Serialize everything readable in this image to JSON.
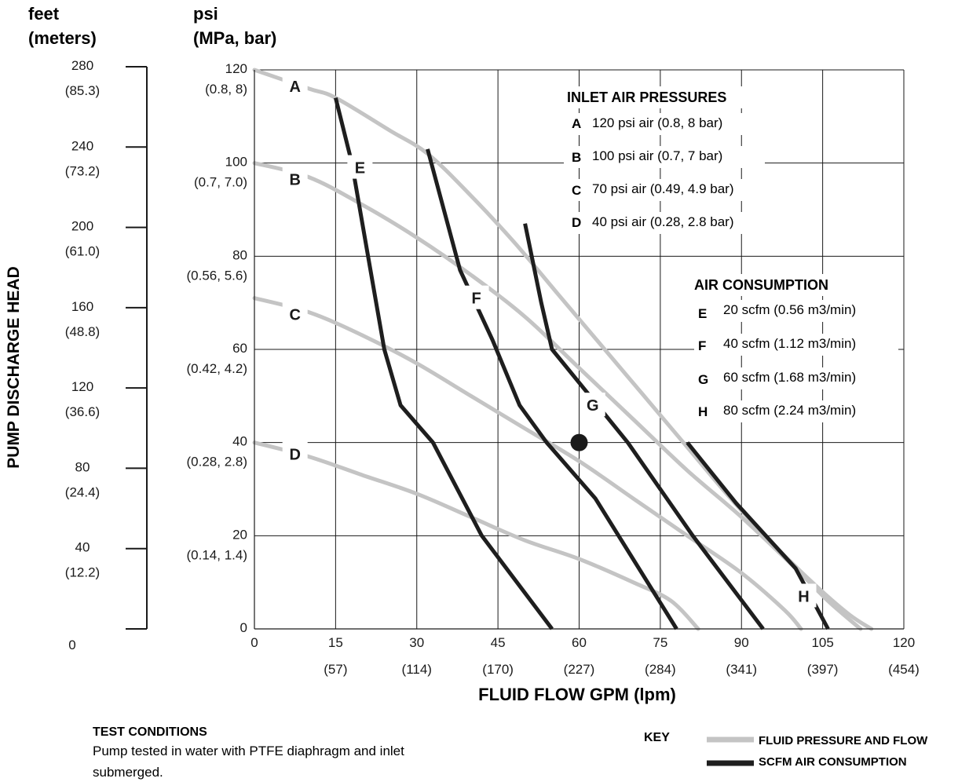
{
  "chart_data": {
    "type": "line",
    "title": "",
    "xlabel": "FLUID FLOW GPM (lpm)",
    "ylabel": "PUMP DISCHARGE HEAD",
    "xlim": [
      0,
      120
    ],
    "ylim": [
      0,
      120
    ],
    "grid": true,
    "x_ticks": [
      {
        "v": 0,
        "top": "0",
        "bottom": ""
      },
      {
        "v": 15,
        "top": "15",
        "bottom": "(57)"
      },
      {
        "v": 30,
        "top": "30",
        "bottom": "(114)"
      },
      {
        "v": 45,
        "top": "45",
        "bottom": "(170)"
      },
      {
        "v": 60,
        "top": "60",
        "bottom": "(227)"
      },
      {
        "v": 75,
        "top": "75",
        "bottom": "(284)"
      },
      {
        "v": 90,
        "top": "90",
        "bottom": "(341)"
      },
      {
        "v": 105,
        "top": "105",
        "bottom": "(397)"
      },
      {
        "v": 120,
        "top": "120",
        "bottom": "(454)"
      }
    ],
    "psi_header": [
      "psi",
      "(MPa, bar)"
    ],
    "psi_ticks": [
      {
        "v": 0,
        "top": "0",
        "bottom": ""
      },
      {
        "v": 20,
        "top": "20",
        "bottom": "(0.14, 1.4)"
      },
      {
        "v": 40,
        "top": "40",
        "bottom": "(0.28, 2.8)"
      },
      {
        "v": 60,
        "top": "60",
        "bottom": "(0.42, 4.2)"
      },
      {
        "v": 80,
        "top": "80",
        "bottom": "(0.56, 5.6)"
      },
      {
        "v": 100,
        "top": "100",
        "bottom": "(0.7, 7.0)"
      },
      {
        "v": 120,
        "top": "120",
        "bottom": "(0.8, 8)"
      }
    ],
    "feet_header": [
      "feet",
      "(meters)"
    ],
    "feet_ticks": [
      {
        "v": 0,
        "top": "0",
        "bottom": ""
      },
      {
        "v": 40,
        "top": "40",
        "bottom": "(12.2)"
      },
      {
        "v": 80,
        "top": "80",
        "bottom": "(24.4)"
      },
      {
        "v": 120,
        "top": "120",
        "bottom": "(36.6)"
      },
      {
        "v": 160,
        "top": "160",
        "bottom": "(48.8)"
      },
      {
        "v": 200,
        "top": "200",
        "bottom": "(61.0)"
      },
      {
        "v": 240,
        "top": "240",
        "bottom": "(73.2)"
      },
      {
        "v": 280,
        "top": "280",
        "bottom": "(85.3)"
      }
    ],
    "pressure_curves": [
      {
        "name": "A",
        "points": [
          [
            0,
            120
          ],
          [
            10,
            116
          ],
          [
            15,
            114
          ],
          [
            25,
            107
          ],
          [
            32,
            102
          ],
          [
            40,
            93
          ],
          [
            48,
            83
          ],
          [
            56,
            72
          ],
          [
            64,
            61
          ],
          [
            72,
            50
          ],
          [
            80,
            39
          ],
          [
            88,
            28
          ],
          [
            96,
            18
          ],
          [
            104,
            9
          ],
          [
            110,
            3
          ],
          [
            114,
            0
          ]
        ]
      },
      {
        "name": "B",
        "points": [
          [
            0,
            100
          ],
          [
            10,
            97
          ],
          [
            20,
            91
          ],
          [
            30,
            84
          ],
          [
            40,
            76
          ],
          [
            50,
            67
          ],
          [
            60,
            56
          ],
          [
            70,
            45
          ],
          [
            80,
            34
          ],
          [
            90,
            24
          ],
          [
            100,
            13
          ],
          [
            106,
            6
          ],
          [
            112,
            0
          ]
        ]
      },
      {
        "name": "C",
        "points": [
          [
            0,
            71
          ],
          [
            10,
            68
          ],
          [
            20,
            63
          ],
          [
            30,
            57
          ],
          [
            40,
            50
          ],
          [
            50,
            43
          ],
          [
            60,
            36
          ],
          [
            70,
            28
          ],
          [
            80,
            20
          ],
          [
            90,
            12
          ],
          [
            98,
            4
          ],
          [
            101,
            0
          ]
        ]
      },
      {
        "name": "D",
        "points": [
          [
            0,
            40
          ],
          [
            10,
            37
          ],
          [
            20,
            33
          ],
          [
            30,
            29
          ],
          [
            40,
            24
          ],
          [
            50,
            19
          ],
          [
            60,
            15
          ],
          [
            70,
            10
          ],
          [
            77,
            6
          ],
          [
            82,
            0
          ]
        ]
      }
    ],
    "air_curves": [
      {
        "name": "E",
        "points": [
          [
            15,
            114
          ],
          [
            18,
            100
          ],
          [
            21,
            80
          ],
          [
            24,
            60
          ],
          [
            27,
            48
          ],
          [
            33,
            40
          ],
          [
            42,
            20
          ],
          [
            55,
            0
          ]
        ]
      },
      {
        "name": "F",
        "points": [
          [
            32,
            103
          ],
          [
            35,
            90
          ],
          [
            38,
            77
          ],
          [
            44,
            62
          ],
          [
            49,
            48
          ],
          [
            54,
            40
          ],
          [
            63,
            28
          ],
          [
            78,
            0
          ]
        ]
      },
      {
        "name": "G",
        "points": [
          [
            50,
            87
          ],
          [
            53,
            70
          ],
          [
            55,
            60
          ],
          [
            62,
            50
          ],
          [
            69,
            40
          ],
          [
            81,
            20
          ],
          [
            94,
            0
          ]
        ]
      },
      {
        "name": "H",
        "points": [
          [
            80,
            40
          ],
          [
            89,
            27
          ],
          [
            100,
            13
          ],
          [
            106,
            0
          ]
        ]
      }
    ],
    "curve_labels": [
      {
        "text": "A",
        "x": 7.5,
        "y": 116.5
      },
      {
        "text": "B",
        "x": 7.5,
        "y": 96.5
      },
      {
        "text": "C",
        "x": 7.5,
        "y": 67.5
      },
      {
        "text": "D",
        "x": 7.5,
        "y": 37.5
      },
      {
        "text": "E",
        "x": 19.5,
        "y": 99
      },
      {
        "text": "F",
        "x": 41,
        "y": 71
      },
      {
        "text": "G",
        "x": 62.5,
        "y": 48
      },
      {
        "text": "H",
        "x": 101.5,
        "y": 7
      }
    ],
    "operating_point": {
      "x": 60,
      "y": 40
    },
    "colors": {
      "pressure": "#c4c4c4",
      "air": "#1e1e1e",
      "grid": "#1a1a1a",
      "point": "#1a1a1a"
    }
  },
  "legend_pressures": {
    "title": "INLET AIR PRESSURES",
    "items": [
      {
        "key": "A",
        "label": "120 psi air (0.8, 8 bar)"
      },
      {
        "key": "B",
        "label": "100 psi air (0.7, 7 bar)"
      },
      {
        "key": "C",
        "label": "70 psi air (0.49, 4.9 bar)"
      },
      {
        "key": "D",
        "label": "40 psi air (0.28, 2.8 bar)"
      }
    ]
  },
  "legend_air": {
    "title": "AIR CONSUMPTION",
    "items": [
      {
        "key": "E",
        "label": "20 scfm (0.56 m3/min)"
      },
      {
        "key": "F",
        "label": "40 scfm (1.12 m3/min)"
      },
      {
        "key": "G",
        "label": "60 scfm (1.68 m3/min)"
      },
      {
        "key": "H",
        "label": "80 scfm (2.24 m3/min)"
      }
    ]
  },
  "test_conditions": {
    "title": "TEST CONDITIONS",
    "line1": "Pump tested in water with PTFE diaphragm and inlet",
    "line2": "submerged."
  },
  "key": {
    "title": "KEY",
    "pressure_label": "FLUID PRESSURE AND FLOW",
    "air_label": "SCFM AIR CONSUMPTION"
  }
}
